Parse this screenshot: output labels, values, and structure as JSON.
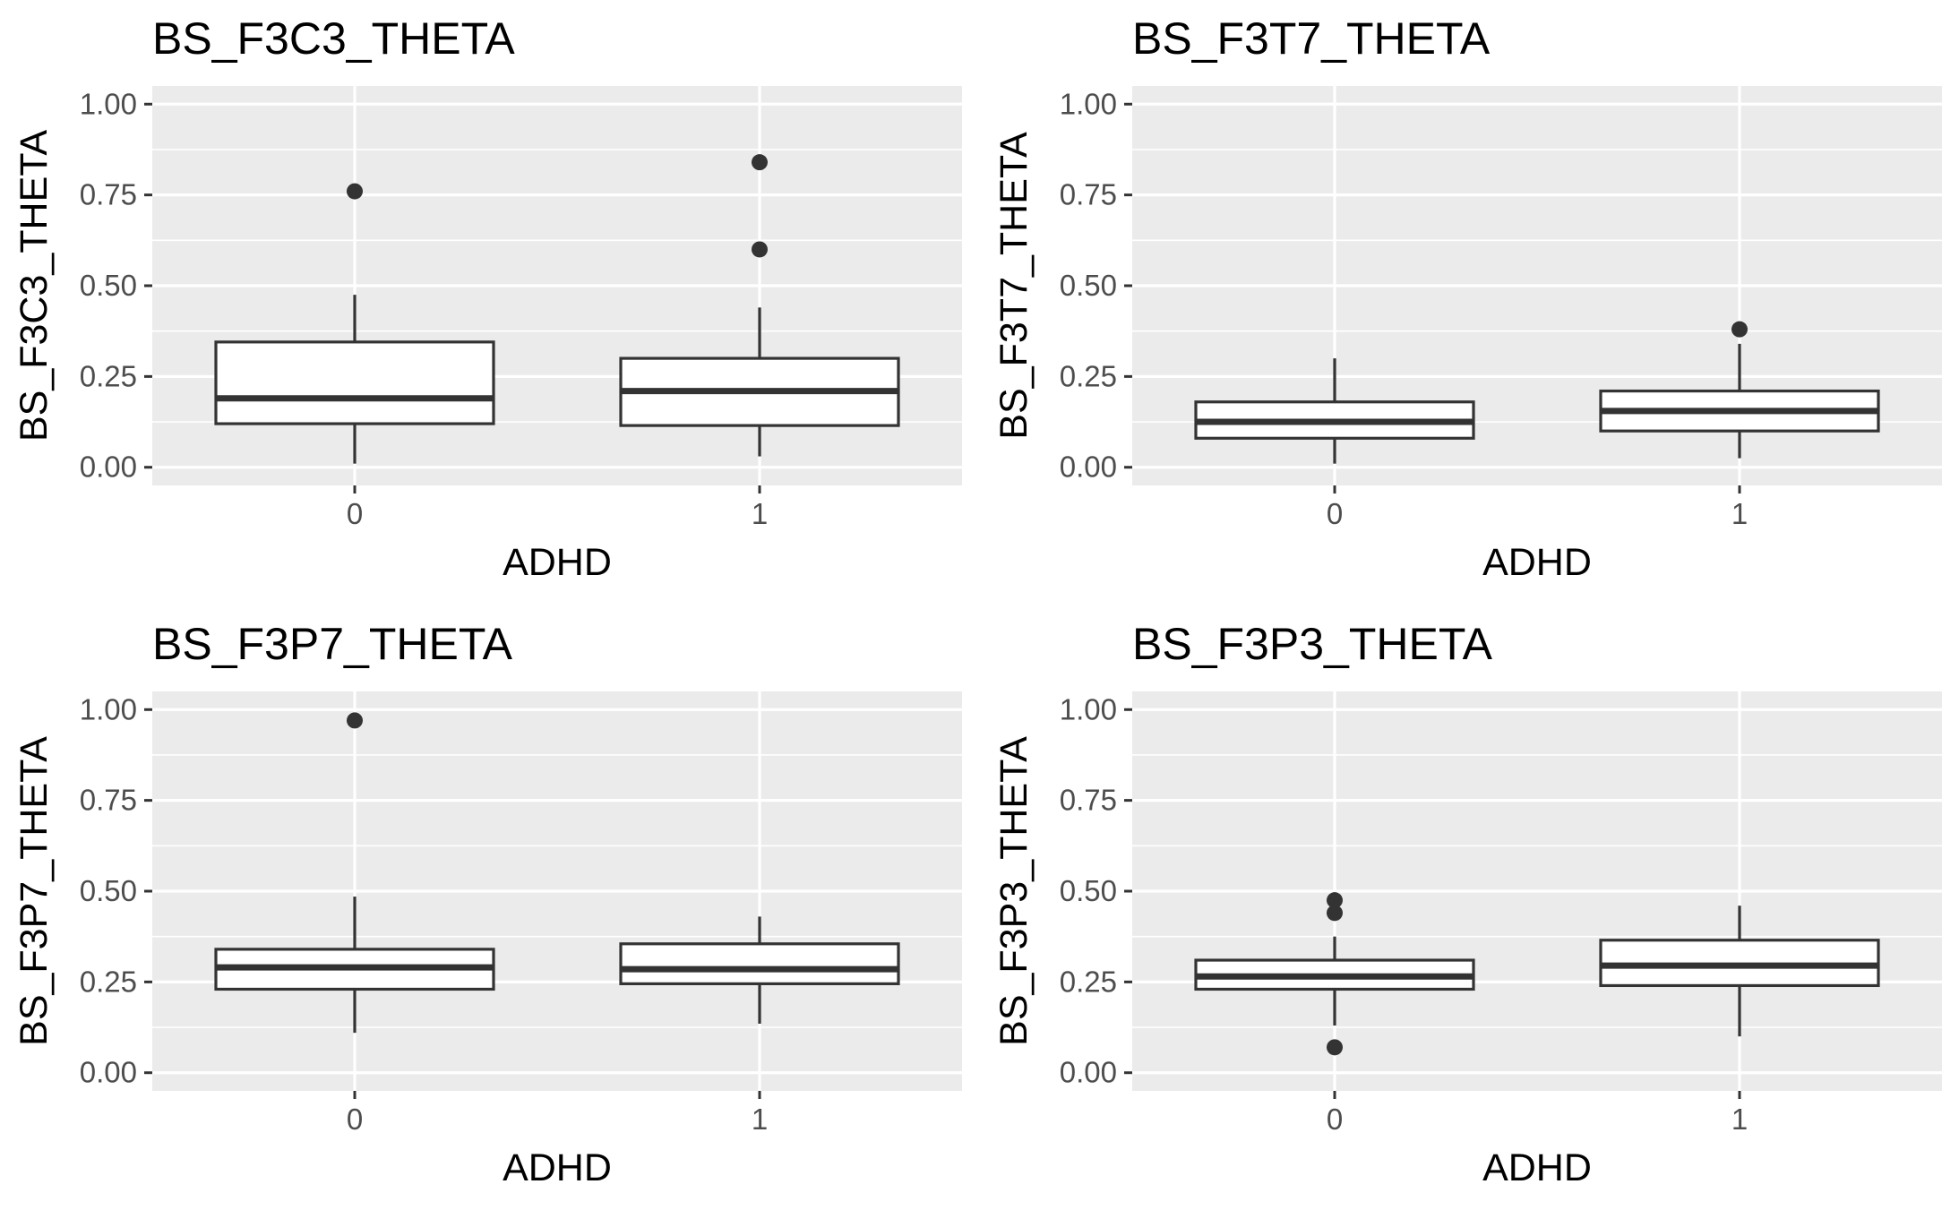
{
  "chart_data": [
    {
      "type": "boxplot",
      "title": "BS_F3C3_THETA",
      "xlabel": "ADHD",
      "ylabel": "BS_F3C3_THETA",
      "categories": [
        "0",
        "1"
      ],
      "ylim": [
        -0.05,
        1.05
      ],
      "yticks": [
        "0.00",
        "0.25",
        "0.50",
        "0.75",
        "1.00"
      ],
      "grid": true,
      "boxes": [
        {
          "category": "0",
          "whisker_low": 0.01,
          "q1": 0.12,
          "median": 0.19,
          "q3": 0.345,
          "whisker_high": 0.475,
          "outliers": [
            0.76
          ]
        },
        {
          "category": "1",
          "whisker_low": 0.03,
          "q1": 0.115,
          "median": 0.21,
          "q3": 0.3,
          "whisker_high": 0.44,
          "outliers": [
            0.6,
            0.84
          ]
        }
      ]
    },
    {
      "type": "boxplot",
      "title": "BS_F3T7_THETA",
      "xlabel": "ADHD",
      "ylabel": "BS_F3T7_THETA",
      "categories": [
        "0",
        "1"
      ],
      "ylim": [
        -0.05,
        1.05
      ],
      "yticks": [
        "0.00",
        "0.25",
        "0.50",
        "0.75",
        "1.00"
      ],
      "grid": true,
      "boxes": [
        {
          "category": "0",
          "whisker_low": 0.01,
          "q1": 0.08,
          "median": 0.125,
          "q3": 0.18,
          "whisker_high": 0.3,
          "outliers": []
        },
        {
          "category": "1",
          "whisker_low": 0.025,
          "q1": 0.1,
          "median": 0.155,
          "q3": 0.21,
          "whisker_high": 0.34,
          "outliers": [
            0.38
          ]
        }
      ]
    },
    {
      "type": "boxplot",
      "title": "BS_F3P7_THETA",
      "xlabel": "ADHD",
      "ylabel": "BS_F3P7_THETA",
      "categories": [
        "0",
        "1"
      ],
      "ylim": [
        -0.05,
        1.05
      ],
      "yticks": [
        "0.00",
        "0.25",
        "0.50",
        "0.75",
        "1.00"
      ],
      "grid": true,
      "boxes": [
        {
          "category": "0",
          "whisker_low": 0.11,
          "q1": 0.23,
          "median": 0.29,
          "q3": 0.34,
          "whisker_high": 0.485,
          "outliers": [
            0.97
          ]
        },
        {
          "category": "1",
          "whisker_low": 0.135,
          "q1": 0.245,
          "median": 0.285,
          "q3": 0.355,
          "whisker_high": 0.43,
          "outliers": []
        }
      ]
    },
    {
      "type": "boxplot",
      "title": "BS_F3P3_THETA",
      "xlabel": "ADHD",
      "ylabel": "BS_F3P3_THETA",
      "categories": [
        "0",
        "1"
      ],
      "ylim": [
        -0.05,
        1.05
      ],
      "yticks": [
        "0.00",
        "0.25",
        "0.50",
        "0.75",
        "1.00"
      ],
      "grid": true,
      "boxes": [
        {
          "category": "0",
          "whisker_low": 0.13,
          "q1": 0.23,
          "median": 0.265,
          "q3": 0.31,
          "whisker_high": 0.375,
          "outliers": [
            0.07,
            0.44,
            0.475
          ]
        },
        {
          "category": "1",
          "whisker_low": 0.1,
          "q1": 0.24,
          "median": 0.295,
          "q3": 0.365,
          "whisker_high": 0.46,
          "outliers": []
        }
      ]
    }
  ]
}
